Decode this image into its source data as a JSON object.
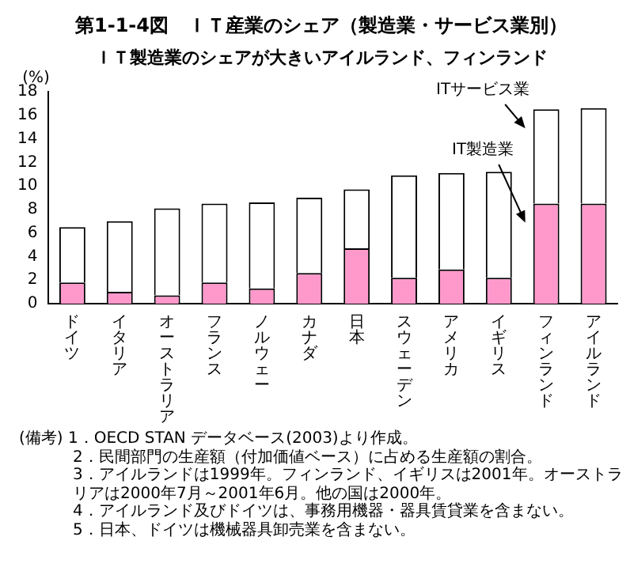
{
  "chart_data": {
    "type": "bar",
    "title": "第1-1-4図　ＩＴ産業のシェア（製造業・サービス業別）",
    "subtitle": "ＩＴ製造業のシェアが大きいアイルランド、フィンランド",
    "ylabel": "(%)",
    "categories": [
      "ドイツ",
      "イタリア",
      "オーストラリア",
      "フランス",
      "ノルウェー",
      "カナダ",
      "日本",
      "スウェーデン",
      "アメリカ",
      "イギリス",
      "フィンランド",
      "アイルランド"
    ],
    "stacked": true,
    "series": [
      {
        "name": "IT製造業",
        "color": "#ff99cc",
        "values": [
          1.8,
          1.0,
          0.7,
          1.8,
          1.3,
          2.6,
          4.7,
          2.2,
          2.9,
          2.2,
          8.5,
          8.5
        ]
      },
      {
        "name": "ITサービス業",
        "color": "#ffffff",
        "values": [
          4.7,
          6.0,
          7.4,
          6.7,
          7.3,
          6.4,
          5.0,
          8.7,
          8.2,
          9.0,
          8.0,
          8.1
        ]
      }
    ],
    "ylim": [
      0,
      18
    ],
    "yticks": [
      0,
      2,
      4,
      6,
      8,
      10,
      12,
      14,
      16,
      18
    ],
    "grid": false,
    "legend": false,
    "annotations": [
      "(備考) 1．OECD STAN データベース(2003)より作成。",
      "2．民間部門の生産額（付加価値ベース）に占める生産額の割合。",
      "3．アイルランドは1999年。フィンランド、イギリスは2001年。オーストラリアは2000年7月～2001年6月。他の国は2000年。",
      "4．アイルランド及びドイツは、事務用機器・器具賃貸業を含まない。",
      "5．日本、ドイツは機械器具卸売業を含まない。"
    ]
  }
}
